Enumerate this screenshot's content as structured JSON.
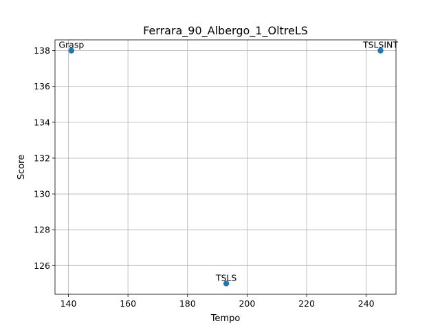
{
  "chart_data": {
    "type": "scatter",
    "title": "Ferrara_90_Albergo_1_OltreLS",
    "xlabel": "Tempo",
    "ylabel": "Score",
    "xlim": [
      135.5,
      250.0
    ],
    "ylim": [
      124.4,
      138.6
    ],
    "xticks": [
      140,
      160,
      180,
      200,
      220,
      240
    ],
    "yticks": [
      126,
      128,
      130,
      132,
      134,
      136,
      138
    ],
    "grid": true,
    "points": [
      {
        "label": "Grasp",
        "x": 141.0,
        "y": 138
      },
      {
        "label": "TSLS",
        "x": 193.0,
        "y": 125
      },
      {
        "label": "TSLSINT",
        "x": 244.8,
        "y": 138
      }
    ],
    "marker_color": "#1f77b4"
  }
}
